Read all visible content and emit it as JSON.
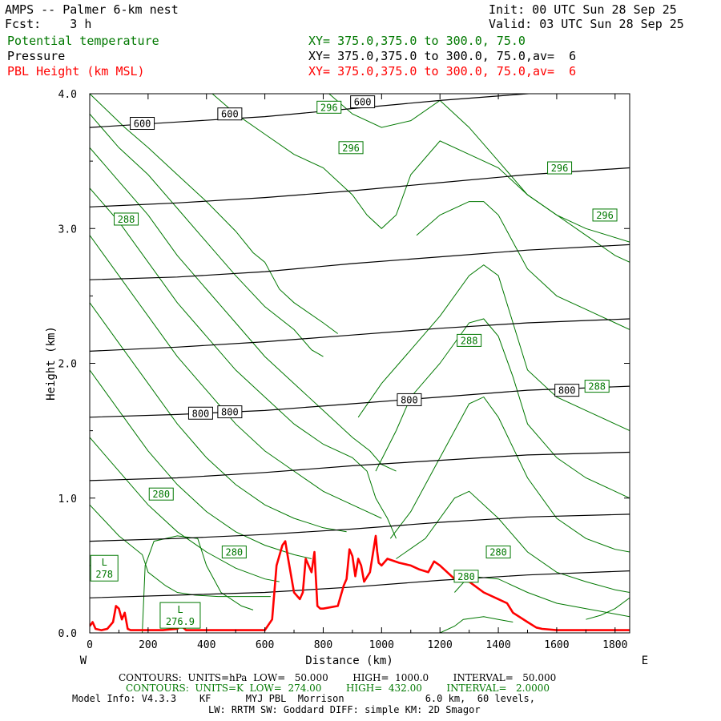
{
  "header": {
    "left": [
      "AMPS -- Palmer 6-km nest",
      "Fcst:    3 h"
    ],
    "right": [
      "Init: 00 UTC Sun 28 Sep 25",
      "Valid: 03 UTC Sun 28 Sep 25"
    ]
  },
  "legend": [
    {
      "label": "Potential temperature",
      "xy": "XY= 375.0,375.0 to 300.0, 75.0",
      "color": "#007800"
    },
    {
      "label": "Pressure",
      "xy": "XY= 375.0,375.0 to 300.0, 75.0,av=  6",
      "color": "#000000"
    },
    {
      "label": "PBL Height (km MSL)",
      "xy": "XY= 375.0,375.0 to 300.0, 75.0,av=  6",
      "color": "#ff0000"
    }
  ],
  "footer": {
    "line1": "CONTOURS:  UNITS=hPa  LOW=   50.000        HIGH=  1000.0        INTERVAL=   50.000",
    "line2": "CONTOURS:  UNITS=K  LOW=  274.00        HIGH=  432.00        INTERVAL=   2.0000",
    "line3": "Model Info: V4.3.3    KF      MYJ PBL  Morrison              6.0 km,  60 levels,",
    "line4": "LW: RRTM SW: Goddard DIFF: simple KM: 2D Smagor"
  },
  "chart_data": {
    "type": "line",
    "title": "AMPS -- Palmer 6-km nest",
    "xlabel": "Distance (km)",
    "ylabel": "Height (km)",
    "xlim": [
      0,
      1850
    ],
    "ylim": [
      0,
      4.0
    ],
    "x_ticks": [
      0,
      200,
      400,
      600,
      800,
      1000,
      1200,
      1400,
      1600,
      1800
    ],
    "x_tick_labels": [
      "0",
      "200",
      "400",
      "600",
      "800",
      "1000",
      "1200",
      "1400",
      "1600",
      "1800"
    ],
    "y_ticks": [
      0,
      1.0,
      2.0,
      3.0,
      4.0
    ],
    "y_tick_labels": [
      "0.0",
      "1.0",
      "2.0",
      "3.0",
      "4.0"
    ],
    "x_end_labels": {
      "left": "W",
      "right": "E"
    },
    "pressure_series": [
      {
        "name": "P1",
        "x": [
          0,
          300,
          600,
          900,
          1200,
          1500,
          1850
        ],
        "y": [
          0.26,
          0.28,
          0.3,
          0.34,
          0.39,
          0.43,
          0.46
        ]
      },
      {
        "name": "P2",
        "x": [
          0,
          300,
          600,
          900,
          1200,
          1500,
          1850
        ],
        "y": [
          0.68,
          0.7,
          0.73,
          0.77,
          0.82,
          0.86,
          0.88
        ]
      },
      {
        "name": "P3",
        "x": [
          0,
          300,
          600,
          900,
          1200,
          1500,
          1850
        ],
        "y": [
          1.13,
          1.15,
          1.19,
          1.24,
          1.28,
          1.32,
          1.34
        ]
      },
      {
        "name": "P4 (800)",
        "x": [
          0,
          300,
          600,
          900,
          1200,
          1500,
          1850
        ],
        "y": [
          1.6,
          1.62,
          1.65,
          1.7,
          1.75,
          1.8,
          1.83
        ]
      },
      {
        "name": "P5",
        "x": [
          0,
          300,
          600,
          900,
          1200,
          1500,
          1850
        ],
        "y": [
          2.09,
          2.12,
          2.16,
          2.21,
          2.26,
          2.3,
          2.33
        ]
      },
      {
        "name": "P6",
        "x": [
          0,
          300,
          600,
          900,
          1200,
          1500,
          1850
        ],
        "y": [
          2.62,
          2.64,
          2.68,
          2.74,
          2.79,
          2.84,
          2.88
        ]
      },
      {
        "name": "P7",
        "x": [
          0,
          300,
          600,
          900,
          1200,
          1500,
          1850
        ],
        "y": [
          3.16,
          3.19,
          3.23,
          3.28,
          3.34,
          3.4,
          3.45
        ]
      },
      {
        "name": "P8 (600)",
        "x": [
          0,
          300,
          600,
          900,
          1200,
          1500,
          1850
        ],
        "y": [
          3.75,
          3.79,
          3.83,
          3.89,
          3.95,
          4.0,
          4.05
        ]
      }
    ],
    "theta_series": [
      {
        "name": "T1",
        "x": [
          0,
          120,
          200,
          300,
          400,
          500,
          560,
          600,
          650,
          700,
          800,
          850
        ],
        "y": [
          4.0,
          3.75,
          3.6,
          3.4,
          3.2,
          2.98,
          2.82,
          2.75,
          2.55,
          2.45,
          2.3,
          2.22
        ]
      },
      {
        "name": "T2",
        "x": [
          0,
          100,
          200,
          300,
          400,
          500,
          600,
          700,
          760,
          800
        ],
        "y": [
          3.85,
          3.6,
          3.4,
          3.15,
          2.9,
          2.65,
          2.42,
          2.25,
          2.1,
          2.05
        ]
      },
      {
        "name": "T3",
        "x": [
          0,
          100,
          200,
          300,
          400,
          500,
          600,
          700,
          800,
          900,
          960,
          1000,
          1050
        ],
        "y": [
          3.6,
          3.35,
          3.1,
          2.8,
          2.55,
          2.3,
          2.05,
          1.85,
          1.65,
          1.45,
          1.35,
          1.25,
          1.2
        ]
      },
      {
        "name": "T4",
        "x": [
          0,
          100,
          200,
          300,
          400,
          500,
          600,
          700,
          800,
          900,
          950,
          980,
          1020,
          1050
        ],
        "y": [
          3.3,
          3.05,
          2.75,
          2.45,
          2.2,
          1.95,
          1.75,
          1.55,
          1.4,
          1.3,
          1.2,
          1.0,
          0.85,
          0.7
        ]
      },
      {
        "name": "T5",
        "x": [
          0,
          100,
          200,
          300,
          400,
          500,
          600,
          700,
          800,
          900,
          950,
          1000
        ],
        "y": [
          2.95,
          2.65,
          2.35,
          2.05,
          1.8,
          1.55,
          1.35,
          1.2,
          1.05,
          0.95,
          0.9,
          0.85
        ]
      },
      {
        "name": "T6",
        "x": [
          0,
          100,
          200,
          300,
          400,
          500,
          600,
          700,
          800,
          880
        ],
        "y": [
          2.45,
          2.15,
          1.85,
          1.55,
          1.3,
          1.1,
          0.95,
          0.85,
          0.78,
          0.75
        ]
      },
      {
        "name": "T7",
        "x": [
          0,
          100,
          200,
          300,
          400,
          500,
          600,
          700,
          760
        ],
        "y": [
          1.95,
          1.65,
          1.35,
          1.1,
          0.9,
          0.75,
          0.65,
          0.58,
          0.55
        ]
      },
      {
        "name": "T8",
        "x": [
          0,
          100,
          200,
          300,
          400,
          500,
          600,
          650
        ],
        "y": [
          1.45,
          1.2,
          0.95,
          0.75,
          0.6,
          0.48,
          0.4,
          0.38
        ]
      },
      {
        "name": "T9",
        "x": [
          0,
          100,
          180,
          200,
          260,
          300,
          360,
          440,
          500,
          620
        ],
        "y": [
          0.95,
          0.72,
          0.58,
          0.45,
          0.35,
          0.3,
          0.28,
          0.27,
          0.27,
          0.27
        ]
      },
      {
        "name": "T10",
        "x": [
          180,
          190,
          220,
          300,
          370,
          400,
          450,
          520,
          560
        ],
        "y": [
          0.0,
          0.5,
          0.68,
          0.72,
          0.7,
          0.5,
          0.3,
          0.2,
          0.17
        ]
      },
      {
        "name": "T11",
        "x": [
          820,
          900,
          1000,
          1100,
          1200,
          1300,
          1400,
          1500,
          1600,
          1700,
          1850
        ],
        "y": [
          4.0,
          3.85,
          3.75,
          3.8,
          3.95,
          3.75,
          3.5,
          3.25,
          3.1,
          3.0,
          2.9
        ]
      },
      {
        "name": "T12",
        "x": [
          420,
          500,
          600,
          700,
          800,
          900,
          950,
          1000,
          1050,
          1100,
          1200,
          1300,
          1400,
          1500,
          1600,
          1700,
          1800,
          1850
        ],
        "y": [
          4.0,
          3.85,
          3.7,
          3.55,
          3.45,
          3.25,
          3.1,
          3.0,
          3.1,
          3.4,
          3.65,
          3.55,
          3.45,
          3.25,
          3.1,
          2.95,
          2.8,
          2.75
        ]
      },
      {
        "name": "T13",
        "x": [
          1120,
          1200,
          1300,
          1350,
          1400,
          1450,
          1500,
          1600,
          1700,
          1800,
          1850
        ],
        "y": [
          2.95,
          3.1,
          3.2,
          3.2,
          3.1,
          2.9,
          2.7,
          2.5,
          2.4,
          2.3,
          2.25
        ]
      },
      {
        "name": "T14",
        "x": [
          920,
          1000,
          1100,
          1200,
          1300,
          1350,
          1400,
          1450,
          1500,
          1600,
          1700,
          1800,
          1850
        ],
        "y": [
          1.6,
          1.85,
          2.1,
          2.35,
          2.65,
          2.73,
          2.65,
          2.3,
          1.95,
          1.75,
          1.65,
          1.55,
          1.5
        ]
      },
      {
        "name": "T15",
        "x": [
          980,
          1050,
          1100,
          1200,
          1300,
          1350,
          1400,
          1450,
          1500,
          1600,
          1700,
          1800,
          1850
        ],
        "y": [
          1.2,
          1.5,
          1.75,
          2.0,
          2.3,
          2.33,
          2.2,
          1.9,
          1.55,
          1.3,
          1.15,
          1.05,
          1.0
        ]
      },
      {
        "name": "T16",
        "x": [
          1030,
          1100,
          1200,
          1300,
          1350,
          1400,
          1500,
          1600,
          1700,
          1800,
          1850
        ],
        "y": [
          0.7,
          0.9,
          1.3,
          1.7,
          1.75,
          1.6,
          1.15,
          0.85,
          0.7,
          0.62,
          0.6
        ]
      },
      {
        "name": "T17",
        "x": [
          1050,
          1150,
          1250,
          1300,
          1400,
          1500,
          1600,
          1700,
          1800,
          1850
        ],
        "y": [
          0.55,
          0.7,
          1.0,
          1.05,
          0.85,
          0.6,
          0.45,
          0.38,
          0.32,
          0.3
        ]
      },
      {
        "name": "T18",
        "x": [
          1250,
          1300,
          1400,
          1500,
          1600,
          1700,
          1800,
          1850
        ],
        "y": [
          0.3,
          0.42,
          0.4,
          0.3,
          0.22,
          0.18,
          0.14,
          0.12
        ]
      },
      {
        "name": "T19",
        "x": [
          1200,
          1250,
          1280,
          1350,
          1400,
          1450
        ],
        "y": [
          0.0,
          0.05,
          0.1,
          0.12,
          0.1,
          0.08
        ]
      },
      {
        "name": "T20",
        "x": [
          1700,
          1750,
          1800,
          1850
        ],
        "y": [
          0.1,
          0.13,
          0.18,
          0.26
        ]
      }
    ],
    "pbl_series": {
      "name": "PBL Height (km MSL)",
      "x": [
        0,
        10,
        20,
        40,
        60,
        80,
        90,
        100,
        110,
        120,
        130,
        140,
        150,
        200,
        250,
        300,
        310,
        320,
        330,
        350,
        400,
        500,
        600,
        625,
        640,
        660,
        670,
        680,
        700,
        720,
        730,
        740,
        760,
        770,
        780,
        790,
        800,
        850,
        870,
        880,
        890,
        900,
        910,
        920,
        930,
        940,
        960,
        980,
        985,
        990,
        1000,
        1020,
        1060,
        1100,
        1130,
        1160,
        1180,
        1200,
        1250,
        1300,
        1350,
        1400,
        1430,
        1450,
        1500,
        1530,
        1550,
        1600,
        1700,
        1850
      ],
      "y": [
        0.05,
        0.08,
        0.03,
        0.02,
        0.03,
        0.08,
        0.2,
        0.18,
        0.1,
        0.15,
        0.03,
        0.02,
        0.02,
        0.02,
        0.02,
        0.03,
        0.05,
        0.04,
        0.02,
        0.02,
        0.02,
        0.02,
        0.02,
        0.1,
        0.5,
        0.65,
        0.68,
        0.55,
        0.3,
        0.25,
        0.3,
        0.55,
        0.45,
        0.6,
        0.2,
        0.18,
        0.18,
        0.2,
        0.35,
        0.4,
        0.62,
        0.57,
        0.42,
        0.55,
        0.5,
        0.38,
        0.45,
        0.72,
        0.6,
        0.52,
        0.5,
        0.55,
        0.52,
        0.5,
        0.47,
        0.45,
        0.53,
        0.5,
        0.4,
        0.38,
        0.3,
        0.25,
        0.22,
        0.15,
        0.08,
        0.04,
        0.03,
        0.02,
        0.02,
        0.02
      ]
    },
    "contour_labels": [
      {
        "text": "600",
        "x": 180,
        "y": 3.78,
        "color": "black"
      },
      {
        "text": "600",
        "x": 480,
        "y": 3.85,
        "color": "black"
      },
      {
        "text": "600",
        "x": 935,
        "y": 3.94,
        "color": "black"
      },
      {
        "text": "800",
        "x": 380,
        "y": 1.63,
        "color": "black"
      },
      {
        "text": "800",
        "x": 480,
        "y": 1.64,
        "color": "black"
      },
      {
        "text": "800",
        "x": 1095,
        "y": 1.73,
        "color": "black"
      },
      {
        "text": "800",
        "x": 1635,
        "y": 1.8,
        "color": "black"
      },
      {
        "text": "296",
        "x": 820,
        "y": 3.9,
        "color": "green"
      },
      {
        "text": "296",
        "x": 895,
        "y": 3.6,
        "color": "green"
      },
      {
        "text": "296",
        "x": 1610,
        "y": 3.45,
        "color": "green"
      },
      {
        "text": "296",
        "x": 1765,
        "y": 3.1,
        "color": "green"
      },
      {
        "text": "288",
        "x": 125,
        "y": 3.07,
        "color": "green"
      },
      {
        "text": "288",
        "x": 1300,
        "y": 2.17,
        "color": "green"
      },
      {
        "text": "288",
        "x": 1738,
        "y": 1.83,
        "color": "green"
      },
      {
        "text": "280",
        "x": 245,
        "y": 1.03,
        "color": "green"
      },
      {
        "text": "280",
        "x": 495,
        "y": 0.6,
        "color": "green"
      },
      {
        "text": "280",
        "x": 1400,
        "y": 0.6,
        "color": "green"
      },
      {
        "text": "280",
        "x": 1290,
        "y": 0.42,
        "color": "green"
      }
    ],
    "lows": [
      {
        "label": "L",
        "value": "278",
        "x": 50,
        "y": 0.48
      },
      {
        "label": "L",
        "value": "276.9",
        "x": 310,
        "y": 0.13
      }
    ]
  }
}
